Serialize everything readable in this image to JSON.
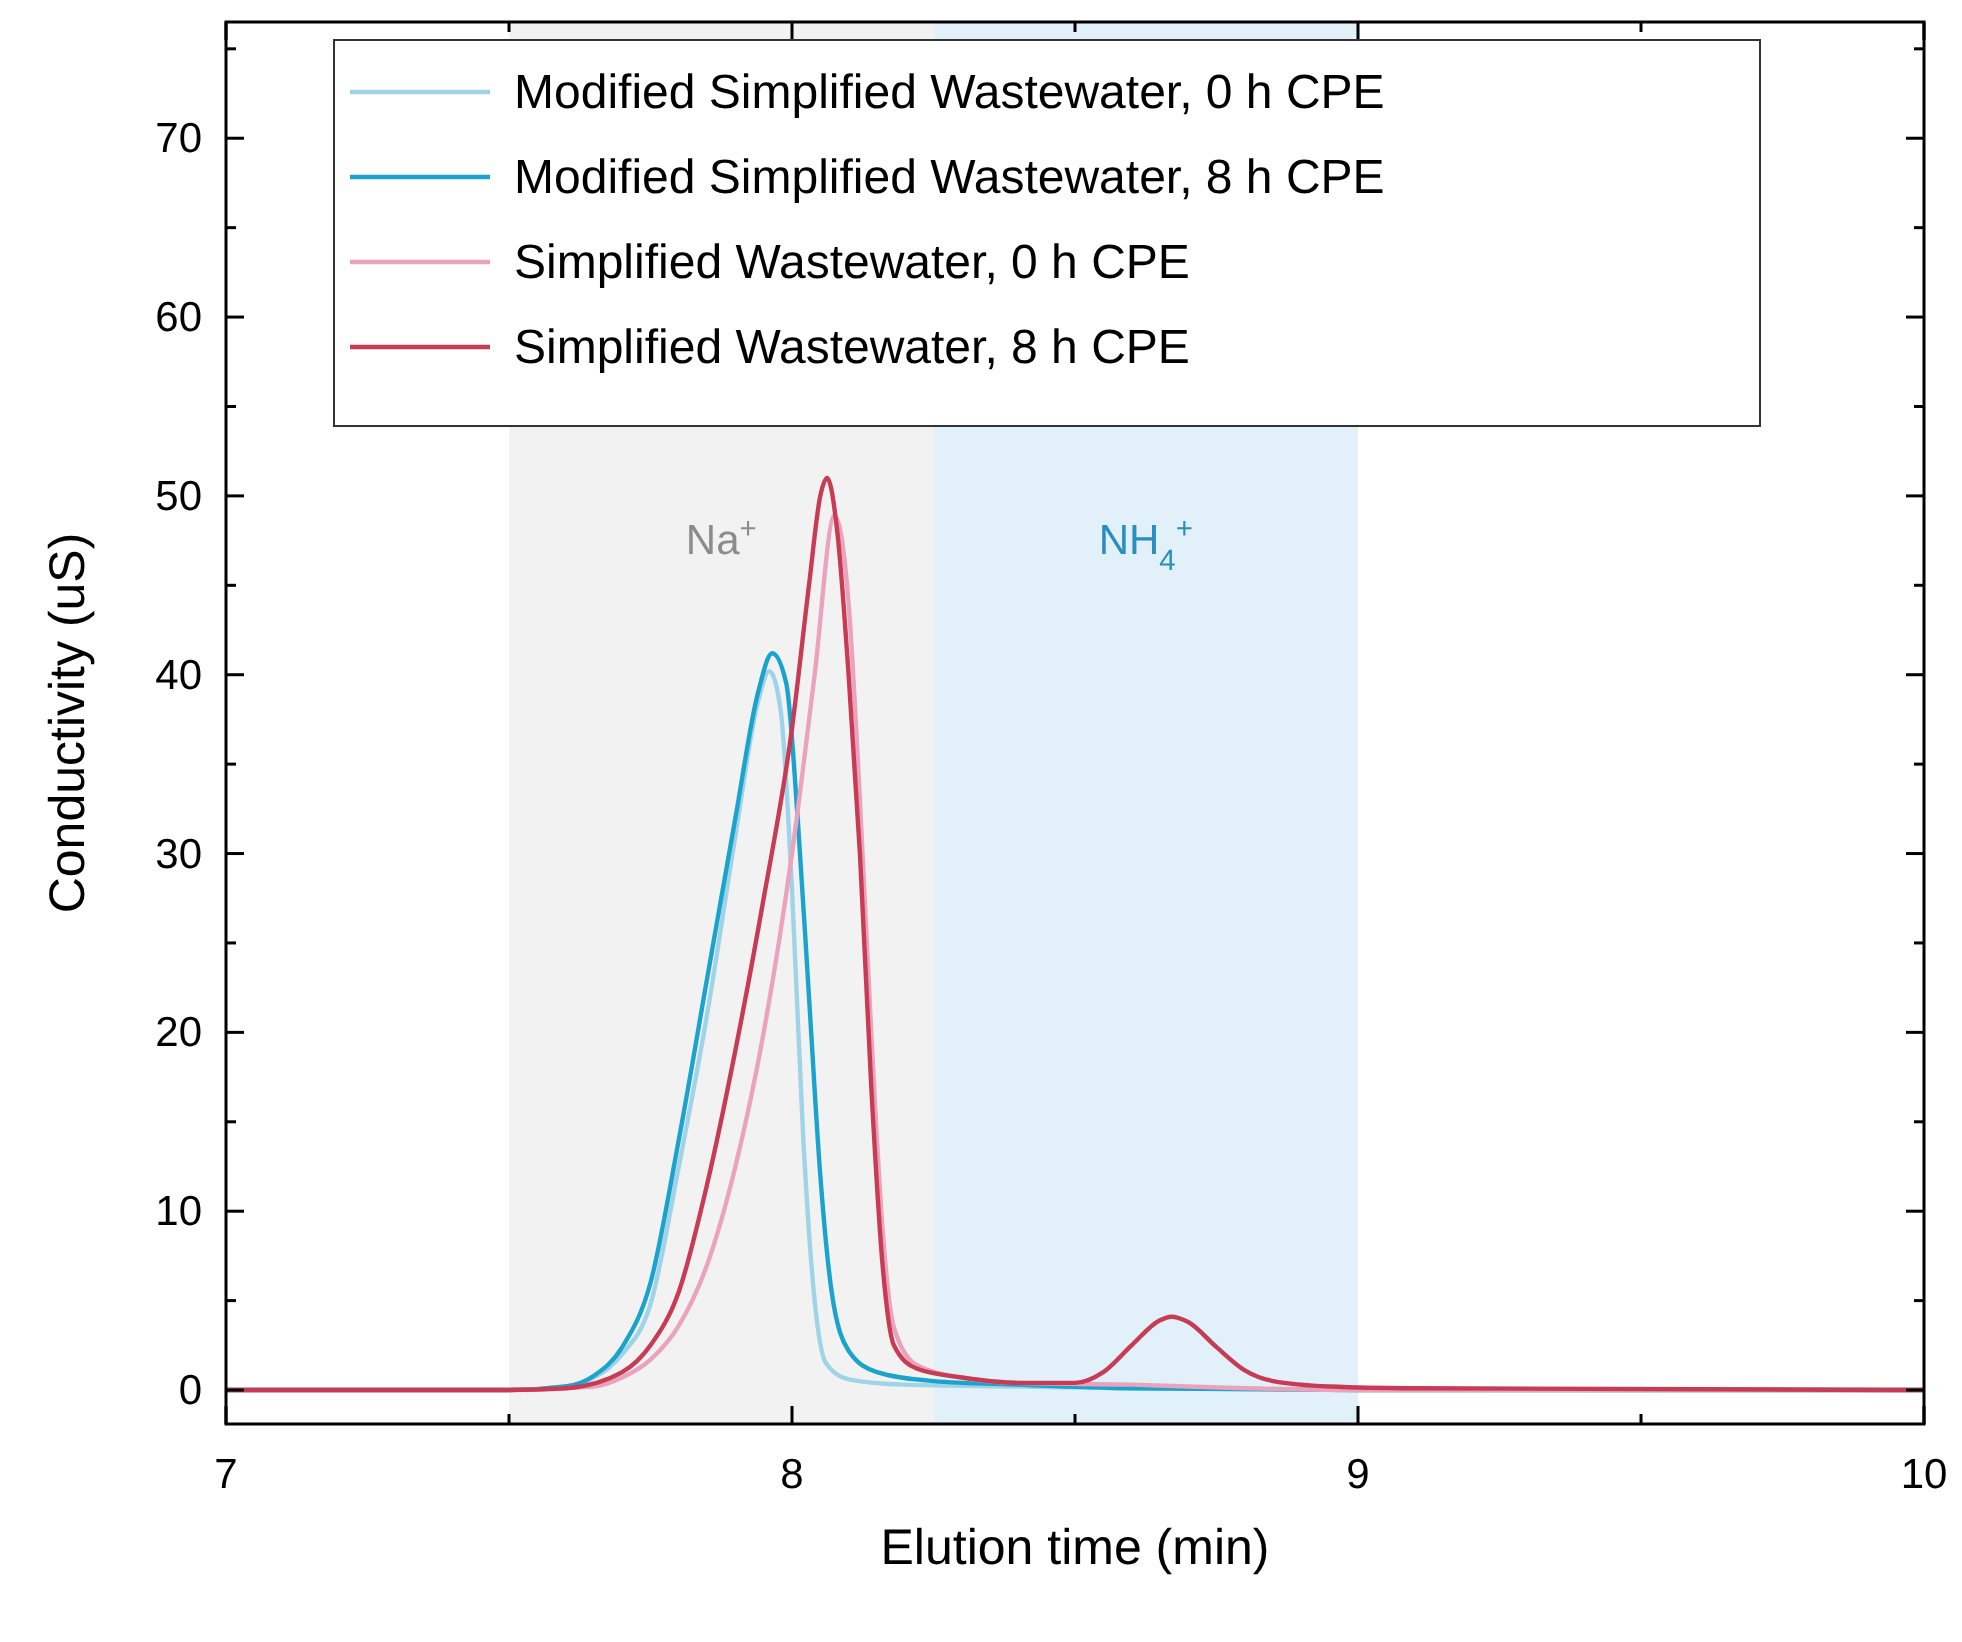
{
  "chart_data": {
    "type": "line",
    "xlabel": "Elution time (min)",
    "ylabel": "Conductivity (uS)",
    "xlim": [
      7,
      10
    ],
    "xticks": [
      7,
      {
        "value": 7.5,
        "label": null
      },
      8,
      {
        "value": 8.5,
        "label": null
      },
      9,
      {
        "value": 9.5,
        "label": null
      },
      10
    ],
    "ylim": [
      -1.9,
      76.5
    ],
    "yticks": [
      0,
      {
        "value": 5,
        "label": null
      },
      10,
      {
        "value": 15,
        "label": null
      },
      20,
      {
        "value": 25,
        "label": null
      },
      30,
      {
        "value": 35,
        "label": null
      },
      40,
      {
        "value": 45,
        "label": null
      },
      50,
      {
        "value": 55,
        "label": null
      },
      60,
      {
        "value": 65,
        "label": null
      },
      70,
      {
        "value": 75,
        "label": null
      }
    ],
    "grid": false,
    "legend": "top",
    "marker": "none",
    "line_style": "solid",
    "bands": [
      {
        "axis": "x",
        "from": 7.5,
        "to": 8.25,
        "label": "Na$^{+}$",
        "color": "#f2f2f2"
      },
      {
        "axis": "x",
        "from": 8.25,
        "to": 9,
        "label": "NH$_{4}$$^{+}$",
        "color": "#e2f1f9"
      }
    ],
    "series": [
      {
        "name": "Modified Simplified Wastewater, 0 h CPE",
        "color": "#9fd3e8",
        "x": [
          7,
          7.5,
          7.6,
          7.65,
          7.7,
          7.75,
          7.8,
          7.85,
          7.9,
          7.94,
          7.96,
          7.98,
          8,
          8.02,
          8.04,
          8.06,
          8.1,
          8.2,
          8.4,
          8.6,
          9,
          10
        ],
        "values": [
          0,
          0,
          0.2,
          0.7,
          2,
          4.8,
          12.5,
          21,
          31,
          38.5,
          40.2,
          38,
          28,
          14,
          5,
          1.5,
          0.6,
          0.3,
          0.2,
          0.1,
          0,
          0
        ]
      },
      {
        "name": "Modified Simplified Wastewater, 8 h CPE",
        "color": "#1aa3cc",
        "x": [
          7,
          7.5,
          7.6,
          7.65,
          7.7,
          7.75,
          7.8,
          7.85,
          7.9,
          7.94,
          7.965,
          7.99,
          8.01,
          8.03,
          8.05,
          8.07,
          8.1,
          8.15,
          8.25,
          8.4,
          8.6,
          9,
          10
        ],
        "values": [
          0,
          0,
          0.2,
          0.8,
          2.4,
          6,
          14,
          23,
          32,
          39,
          41.2,
          39.5,
          32,
          22,
          12,
          5.5,
          2.2,
          1,
          0.5,
          0.3,
          0.1,
          0,
          0
        ]
      },
      {
        "name": "Simplified Wastewater, 0 h CPE",
        "color": "#eba3bd",
        "x": [
          7,
          7.5,
          7.65,
          7.7,
          7.75,
          7.8,
          7.85,
          7.9,
          7.95,
          8,
          8.04,
          8.075,
          8.1,
          8.12,
          8.14,
          8.16,
          8.18,
          8.22,
          8.3,
          8.4,
          8.6,
          8.8,
          9,
          10
        ],
        "values": [
          0,
          0,
          0.2,
          0.7,
          1.7,
          3.6,
          7,
          12.5,
          20,
          30,
          40,
          48.9,
          44,
          33,
          20,
          9,
          3.5,
          1.4,
          0.7,
          0.4,
          0.3,
          0.1,
          0,
          0
        ]
      },
      {
        "name": "Simplified Wastewater, 8 h CPE",
        "color": "#c83b55",
        "x": [
          7,
          7.5,
          7.6,
          7.7,
          7.75,
          7.8,
          7.85,
          7.9,
          7.95,
          8,
          8.03,
          8.05,
          8.062,
          8.08,
          8.1,
          8.12,
          8.14,
          8.16,
          8.18,
          8.22,
          8.3,
          8.4,
          8.5,
          8.55,
          8.6,
          8.65,
          8.67,
          8.7,
          8.75,
          8.8,
          8.85,
          8.95,
          9.1,
          10
        ],
        "values": [
          0,
          0,
          0.1,
          1,
          2.5,
          5.5,
          11.5,
          19,
          27.5,
          37,
          45,
          50,
          51,
          48,
          40,
          30,
          17,
          7,
          2.5,
          1.2,
          0.7,
          0.4,
          0.4,
          1,
          2.5,
          3.9,
          4.1,
          3.8,
          2.4,
          1.1,
          0.5,
          0.2,
          0.1,
          0
        ]
      }
    ]
  }
}
